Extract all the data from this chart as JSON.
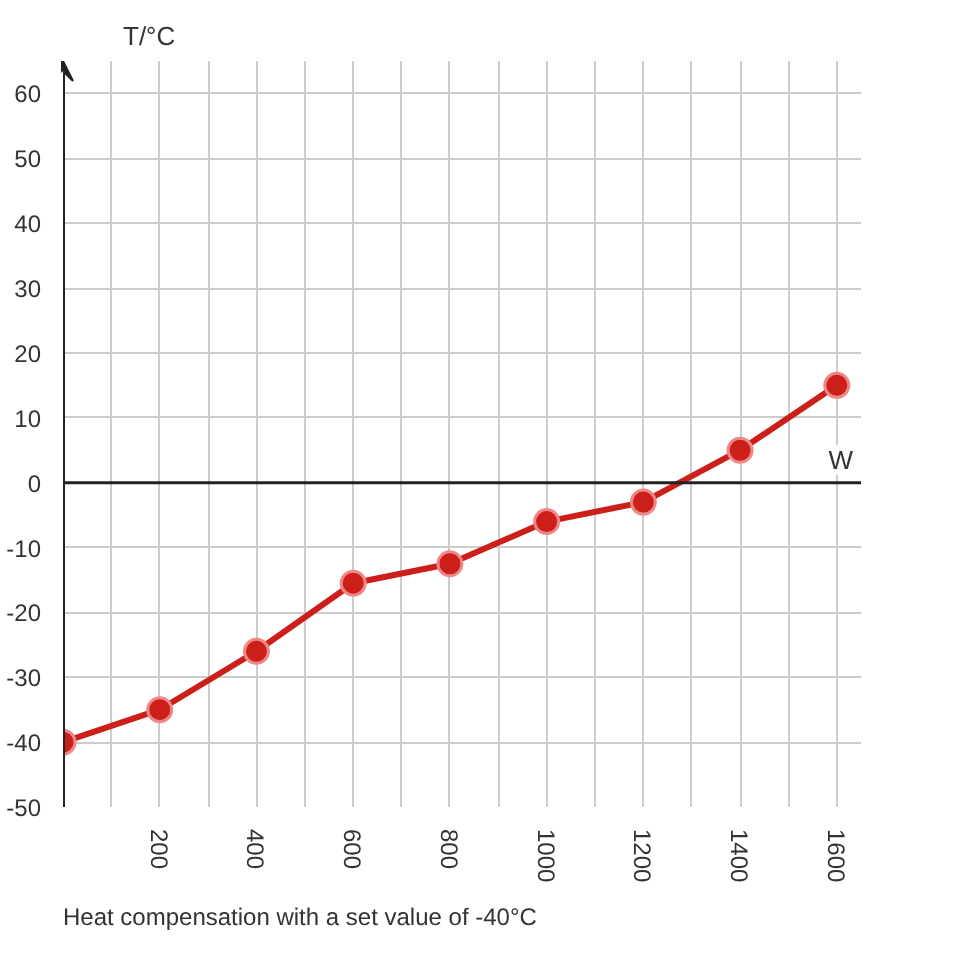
{
  "chart_data": {
    "type": "line",
    "xlabel": "W",
    "ylabel": "T/°C",
    "x": [
      0,
      200,
      400,
      600,
      800,
      1000,
      1200,
      1400,
      1600
    ],
    "series": [
      {
        "color": "#cc1f1a",
        "values": [
          -40,
          -35,
          -26,
          -15.5,
          -12.5,
          -6,
          -3,
          5,
          15
        ]
      }
    ],
    "xlim": [
      0,
      1650
    ],
    "ylim": [
      -50,
      65
    ],
    "xticks": [
      {
        "value": 100,
        "label": null
      },
      200,
      {
        "value": 300,
        "label": null
      },
      400,
      {
        "value": 500,
        "label": null
      },
      600,
      {
        "value": 700,
        "label": null
      },
      800,
      {
        "value": 900,
        "label": null
      },
      1000,
      {
        "value": 1100,
        "label": null
      },
      1200,
      {
        "value": 1300,
        "label": null
      },
      1400,
      {
        "value": 1500,
        "label": null
      },
      1600
    ],
    "yticks": [
      -50,
      -40,
      -30,
      -20,
      -10,
      0,
      10,
      20,
      30,
      40,
      50,
      60
    ],
    "grid": true,
    "marker": "circle",
    "line_style": "solid",
    "ref_lines": [
      {
        "axis": "y",
        "value": 0
      }
    ],
    "annotations": [
      "Heat compensation with a set value of -40°C"
    ]
  }
}
